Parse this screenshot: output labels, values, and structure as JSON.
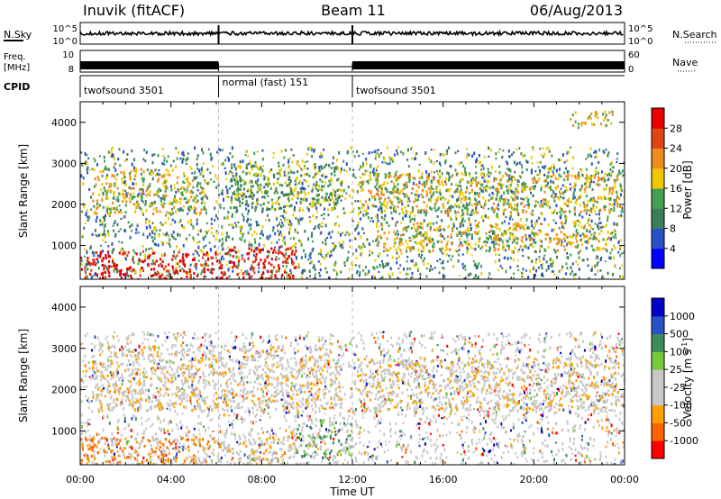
{
  "header": {
    "station": "Inuvik (fitACF)",
    "beam": "Beam 11",
    "date": "06/Aug/2013"
  },
  "strips": {
    "nsky_label": "N.Sky",
    "nsky_ticks": [
      "10^5",
      "10^0"
    ],
    "nsearch_label": "N.Search",
    "nsearch_ticks": [
      "10^5",
      "10^0"
    ],
    "freq_label_1": "Freq.",
    "freq_label_2": "[MHz]",
    "freq_ticks": [
      "10",
      "8"
    ],
    "nave_label": "Nave",
    "nave_ticks": [
      "60",
      "0"
    ],
    "cpid_label": "CPID",
    "cpid_segments": [
      {
        "name": "twofsound 3501",
        "start_ut": 0,
        "end_ut": 6.1
      },
      {
        "name": "normal (fast) 151",
        "start_ut": 6.1,
        "end_ut": 12.0
      },
      {
        "name": "twofsound 3501",
        "start_ut": 12.0,
        "end_ut": 24
      }
    ]
  },
  "chart_data": [
    {
      "type": "heatmap",
      "panel": "power",
      "ylabel": "Slant Range [km]",
      "xlabel": "Time UT",
      "xlim": [
        0,
        24
      ],
      "ylim": [
        180,
        4500
      ],
      "x_ticks": [
        "00:00",
        "04:00",
        "08:00",
        "12:00",
        "16:00",
        "20:00",
        "00:00"
      ],
      "y_ticks": [
        1000,
        2000,
        3000,
        4000
      ],
      "colorbar": {
        "label": "Power [dB]",
        "ticks": [
          "28",
          "24",
          "20",
          "16",
          "12",
          "8",
          "4"
        ],
        "colors": [
          "#0000ff",
          "#2850c8",
          "#3c7e5a",
          "#46a052",
          "#f0c800",
          "#f08c1e",
          "#e04614",
          "#e60000"
        ]
      },
      "regions": [
        {
          "t": [
            0.0,
            6.1
          ],
          "r": [
            180,
            900
          ],
          "level": 7
        },
        {
          "t": [
            6.1,
            9.5
          ],
          "r": [
            180,
            1000
          ],
          "level": 7
        },
        {
          "t": [
            0.5,
            5.5
          ],
          "r": [
            1800,
            2900
          ],
          "level": 4
        },
        {
          "t": [
            6.5,
            11.5
          ],
          "r": [
            1900,
            3000
          ],
          "level": 3
        },
        {
          "t": [
            12.2,
            24
          ],
          "r": [
            1800,
            2800
          ],
          "level": 4
        },
        {
          "t": [
            13,
            23.5
          ],
          "r": [
            900,
            1600
          ],
          "level": 4
        },
        {
          "t": [
            21.5,
            23.5
          ],
          "r": [
            3900,
            4300
          ],
          "level": 4
        }
      ]
    },
    {
      "type": "heatmap",
      "panel": "velocity",
      "ylabel": "Slant Range [km]",
      "xlabel": "Time UT",
      "xlim": [
        0,
        24
      ],
      "ylim": [
        180,
        4500
      ],
      "x_ticks": [
        "00:00",
        "04:00",
        "08:00",
        "12:00",
        "16:00",
        "20:00",
        "00:00"
      ],
      "y_ticks": [
        1000,
        2000,
        3000,
        4000
      ],
      "colorbar": {
        "label": "Velocity [m s-1]",
        "label_main": "Velocity [m s",
        "label_sup": "-1",
        "label_end": "]",
        "ticks": [
          "1000",
          "500",
          "100",
          "25",
          "-25",
          "-100",
          "-500",
          "-1000"
        ],
        "colors": [
          "#ff0000",
          "#ff6400",
          "#ffa000",
          "#c8c8c8",
          "#c8c8c8",
          "#78c83c",
          "#3c8c5a",
          "#2850c8",
          "#0000c8"
        ]
      },
      "regions": [
        {
          "t": [
            0.0,
            6.1
          ],
          "r": [
            180,
            900
          ],
          "level": 2
        },
        {
          "t": [
            6.1,
            9.5
          ],
          "r": [
            180,
            1000
          ],
          "level": 3
        },
        {
          "t": [
            0.5,
            11.5
          ],
          "r": [
            1500,
            3100
          ],
          "level": 3
        },
        {
          "t": [
            12.2,
            24
          ],
          "r": [
            1500,
            2800
          ],
          "level": 3
        },
        {
          "t": [
            9.5,
            12.0
          ],
          "r": [
            400,
            1300
          ],
          "level": 5
        }
      ]
    }
  ]
}
